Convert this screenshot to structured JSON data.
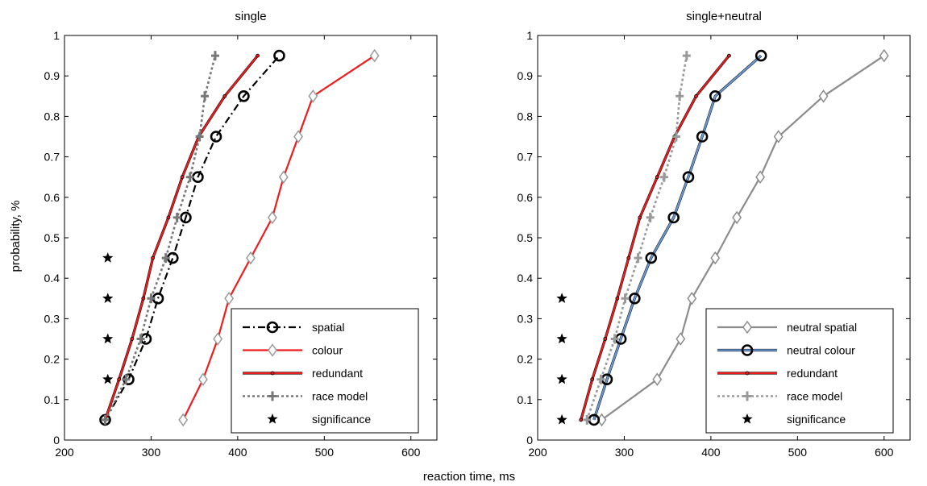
{
  "figure": {
    "xlabel": "reaction time, ms",
    "ylabel": "probability, %"
  },
  "chart_data": [
    {
      "type": "line",
      "title": "single",
      "xlim": [
        200,
        630
      ],
      "ylim": [
        0,
        1
      ],
      "xticks": [
        200,
        300,
        400,
        500,
        600
      ],
      "yticks": [
        0,
        0.1,
        0.2,
        0.3,
        0.4,
        0.5,
        0.6,
        0.7,
        0.8,
        0.9,
        1
      ],
      "ytick_labels": [
        "0",
        "0.1",
        "0.2",
        "0.3",
        "0.4",
        "0.5",
        "0.6",
        "0.7",
        "0.8",
        "0.9",
        "1"
      ],
      "grid": false,
      "legend_position": "bottom-right",
      "series": [
        {
          "name": "spatial",
          "color": "#000000",
          "dash": "dashdot",
          "marker": "circle",
          "x": [
            247,
            274,
            294,
            308,
            325,
            340,
            354,
            375,
            407,
            448
          ],
          "y": [
            0.05,
            0.15,
            0.25,
            0.35,
            0.45,
            0.55,
            0.65,
            0.75,
            0.85,
            0.95
          ]
        },
        {
          "name": "colour",
          "color": "#ee1c1c",
          "dash": "solid",
          "marker": "diamond",
          "x": [
            337,
            360,
            377,
            390,
            415,
            440,
            453,
            470,
            487,
            558
          ],
          "y": [
            0.05,
            0.15,
            0.25,
            0.35,
            0.45,
            0.55,
            0.65,
            0.75,
            0.85,
            0.95
          ]
        },
        {
          "name": "redundant",
          "color": "#ee1c1c",
          "outline": "#000000",
          "dash": "solid",
          "marker": "dot",
          "x": [
            247,
            263,
            278,
            291,
            302,
            320,
            336,
            355,
            385,
            423
          ],
          "y": [
            0.05,
            0.15,
            0.25,
            0.35,
            0.45,
            0.55,
            0.65,
            0.75,
            0.85,
            0.95
          ]
        },
        {
          "name": "race model",
          "color": "#777777",
          "dash": "dotted",
          "marker": "plus",
          "x": [
            247,
            271,
            288,
            300,
            317,
            330,
            345,
            356,
            362,
            374
          ],
          "y": [
            0.05,
            0.15,
            0.25,
            0.35,
            0.45,
            0.55,
            0.65,
            0.75,
            0.85,
            0.95
          ]
        },
        {
          "name": "significance",
          "color": "#000000",
          "dash": "none",
          "marker": "star",
          "x": [
            250,
            250,
            250,
            250
          ],
          "y": [
            0.15,
            0.25,
            0.35,
            0.45
          ]
        }
      ]
    },
    {
      "type": "line",
      "title": "single+neutral",
      "xlim": [
        200,
        630
      ],
      "ylim": [
        0,
        1
      ],
      "xticks": [
        200,
        300,
        400,
        500,
        600
      ],
      "yticks": [
        0,
        0.1,
        0.2,
        0.3,
        0.4,
        0.5,
        0.6,
        0.7,
        0.8,
        0.9,
        1
      ],
      "ytick_labels": [
        "0",
        "0.1",
        "0.2",
        "0.3",
        "0.4",
        "0.5",
        "0.6",
        "0.7",
        "0.8",
        "0.9",
        "1"
      ],
      "grid": false,
      "legend_position": "bottom-right",
      "series": [
        {
          "name": "neutral spatial",
          "color": "#8c8c8c",
          "dash": "solid",
          "marker": "diamond",
          "x": [
            274,
            338,
            365,
            378,
            405,
            430,
            457,
            478,
            530,
            600
          ],
          "y": [
            0.05,
            0.15,
            0.25,
            0.35,
            0.45,
            0.55,
            0.65,
            0.75,
            0.85,
            0.95
          ]
        },
        {
          "name": "neutral colour",
          "color": "#6a9ad6",
          "outline": "#000000",
          "dash": "solid",
          "marker": "circle",
          "x": [
            265,
            280,
            296,
            312,
            331,
            357,
            374,
            390,
            405,
            458
          ],
          "y": [
            0.05,
            0.15,
            0.25,
            0.35,
            0.45,
            0.55,
            0.65,
            0.75,
            0.85,
            0.95
          ]
        },
        {
          "name": "redundant",
          "color": "#ee1c1c",
          "outline": "#000000",
          "dash": "solid",
          "marker": "dot",
          "x": [
            250,
            263,
            278,
            292,
            305,
            318,
            338,
            358,
            383,
            421
          ],
          "y": [
            0.05,
            0.15,
            0.25,
            0.35,
            0.45,
            0.55,
            0.65,
            0.75,
            0.85,
            0.95
          ]
        },
        {
          "name": "race model",
          "color": "#999999",
          "dash": "dotted",
          "marker": "plus",
          "x": [
            257,
            273,
            289,
            301,
            316,
            330,
            346,
            360,
            364,
            372
          ],
          "y": [
            0.05,
            0.15,
            0.25,
            0.35,
            0.45,
            0.55,
            0.65,
            0.75,
            0.85,
            0.95
          ]
        },
        {
          "name": "significance",
          "color": "#000000",
          "dash": "none",
          "marker": "star",
          "x": [
            228,
            228,
            228,
            228
          ],
          "y": [
            0.05,
            0.15,
            0.25,
            0.35
          ]
        }
      ]
    }
  ]
}
